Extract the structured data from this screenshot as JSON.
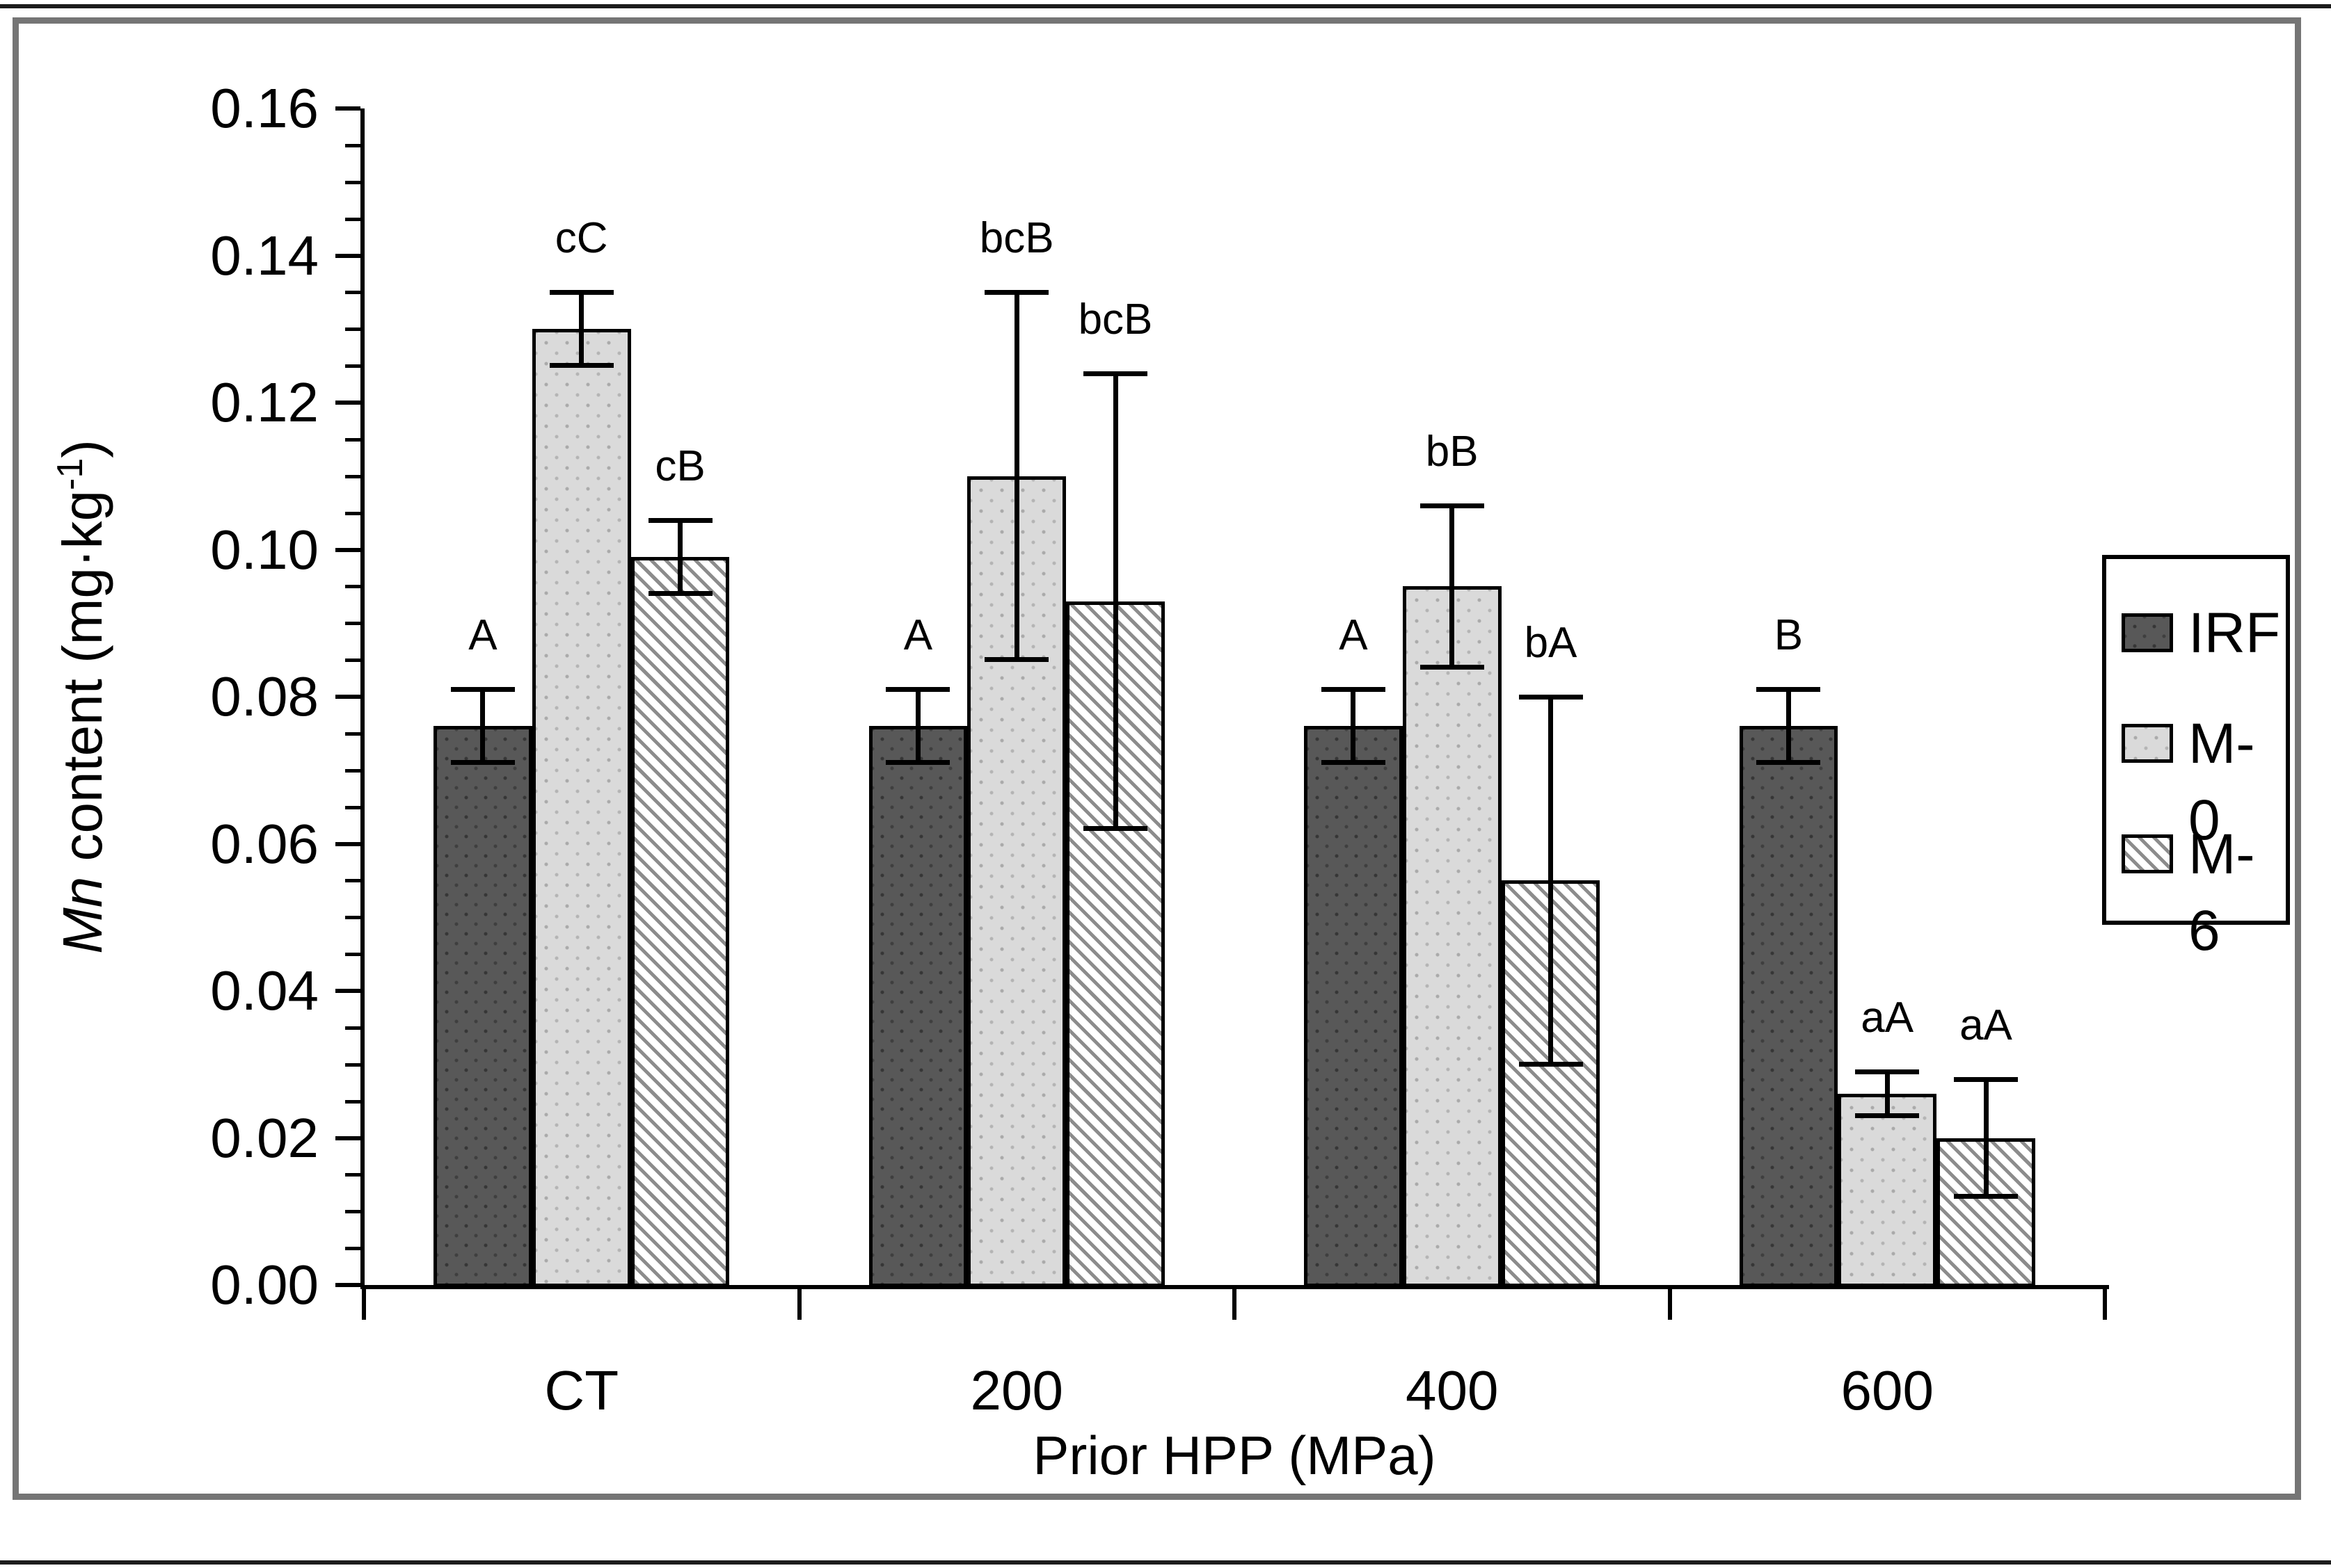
{
  "figure": {
    "background": "#ffffff",
    "frame_color": "#757575",
    "axis_color": "#000000"
  },
  "chart_data": {
    "type": "bar",
    "title": "",
    "xlabel": "Prior HPP (MPa)",
    "ylabel_text": "Mn content (mg·kg⁻¹)",
    "ylabel_parts": {
      "italic": "Mn",
      "rest": " content (mg·kg",
      "sup": "-1",
      "close": ")"
    },
    "categories": [
      "CT",
      "200",
      "400",
      "600"
    ],
    "ylim": [
      0,
      0.16
    ],
    "ytick_step": 0.02,
    "yminor_step": 0.005,
    "ytick_labels": [
      "0.00",
      "0.02",
      "0.04",
      "0.06",
      "0.08",
      "0.10",
      "0.12",
      "0.14",
      "0.16"
    ],
    "grid": "off",
    "legend_position": "right",
    "series": [
      {
        "name": "IRF",
        "pattern": "solid-dark",
        "color": "#585858",
        "values": [
          0.076,
          0.076,
          0.076,
          0.076
        ],
        "errors": [
          0.005,
          0.005,
          0.005,
          0.005
        ],
        "letters": [
          "A",
          "A",
          "A",
          "B"
        ]
      },
      {
        "name": "M-0",
        "pattern": "solid-light",
        "color": "#dadada",
        "values": [
          0.13,
          0.11,
          0.095,
          0.026
        ],
        "errors": [
          0.005,
          0.025,
          0.011,
          0.003
        ],
        "letters": [
          "cC",
          "bcB",
          "bB",
          "aA"
        ]
      },
      {
        "name": "M-6",
        "pattern": "diagonal-hatch",
        "color": "#ffffff",
        "values": [
          0.099,
          0.093,
          0.055,
          0.02
        ],
        "errors": [
          0.005,
          0.031,
          0.025,
          0.008
        ],
        "letters": [
          "cB",
          "bcB",
          "bA",
          "aA"
        ]
      }
    ]
  }
}
